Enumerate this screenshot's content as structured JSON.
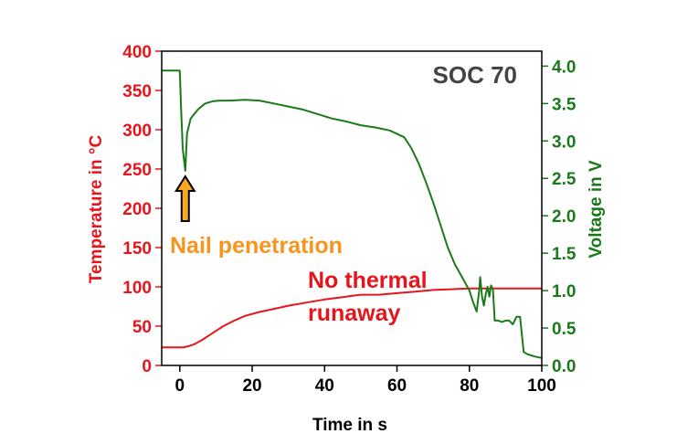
{
  "chart_data": {
    "type": "line",
    "title": "",
    "annotation_top_right": "SOC 70",
    "xlabel": "Time in s",
    "ylabel_left": "Temperature in °C",
    "ylabel_right": "Voltage in V",
    "xlim": [
      -5,
      100
    ],
    "ylim_left": [
      0,
      400
    ],
    "ylim_right": [
      0.0,
      4.2
    ],
    "x_ticks": [
      0,
      20,
      40,
      60,
      80,
      100
    ],
    "y_left_ticks": [
      0,
      50,
      100,
      150,
      200,
      250,
      300,
      350,
      400
    ],
    "y_right_ticks": [
      "0.0",
      "0.5",
      "1.0",
      "1.5",
      "2.0",
      "2.5",
      "3.0",
      "3.5",
      "4.0"
    ],
    "grid": false,
    "legend": "none",
    "colors": {
      "temperature": "#e8141b",
      "voltage": "#1a7a1a",
      "annotation_nail": "#f7941d",
      "arrow_fill": "#f7a823",
      "axis": "#000000",
      "soc_label": "#444444"
    },
    "series": [
      {
        "axis": "left",
        "x": [
          -5,
          0,
          1,
          2,
          4,
          6,
          8,
          10,
          12,
          15,
          18,
          22,
          26,
          30,
          35,
          40,
          45,
          50,
          55,
          60,
          65,
          70,
          75,
          80,
          85,
          90,
          95,
          100
        ],
        "values": [
          23,
          23,
          23,
          24,
          27,
          32,
          38,
          44,
          50,
          57,
          63,
          68,
          72,
          76,
          80,
          84,
          87,
          90,
          90,
          92,
          94,
          96,
          97,
          98,
          98,
          98,
          98,
          98
        ]
      },
      {
        "axis": "right",
        "x": [
          -5,
          0,
          0.3,
          0.8,
          1.5,
          2,
          3,
          5,
          7,
          9,
          11,
          14,
          18,
          22,
          26,
          30,
          34,
          38,
          42,
          46,
          50,
          54,
          58,
          62,
          64,
          66,
          68,
          70,
          72,
          74,
          76,
          78,
          80,
          81,
          82,
          82.7,
          83,
          83.5,
          84,
          84.5,
          85,
          85.5,
          86,
          86.5,
          87,
          88,
          89,
          90,
          91,
          92,
          93,
          94,
          95,
          96,
          98,
          100
        ],
        "values": [
          3.94,
          3.94,
          3.5,
          2.9,
          2.6,
          3.1,
          3.3,
          3.42,
          3.5,
          3.53,
          3.54,
          3.54,
          3.55,
          3.54,
          3.5,
          3.46,
          3.42,
          3.36,
          3.3,
          3.26,
          3.21,
          3.18,
          3.14,
          3.05,
          2.9,
          2.7,
          2.45,
          2.18,
          1.88,
          1.58,
          1.35,
          1.18,
          1.0,
          0.85,
          0.72,
          1.0,
          1.18,
          0.92,
          0.8,
          0.95,
          1.05,
          0.92,
          1.07,
          1.02,
          0.6,
          0.6,
          0.58,
          0.6,
          0.6,
          0.55,
          0.65,
          0.65,
          0.18,
          0.15,
          0.12,
          0.1
        ]
      }
    ],
    "annotations": {
      "nail_penetration": "Nail penetration",
      "no_thermal_runaway_line1": "No thermal",
      "no_thermal_runaway_line2": "runaway"
    }
  }
}
